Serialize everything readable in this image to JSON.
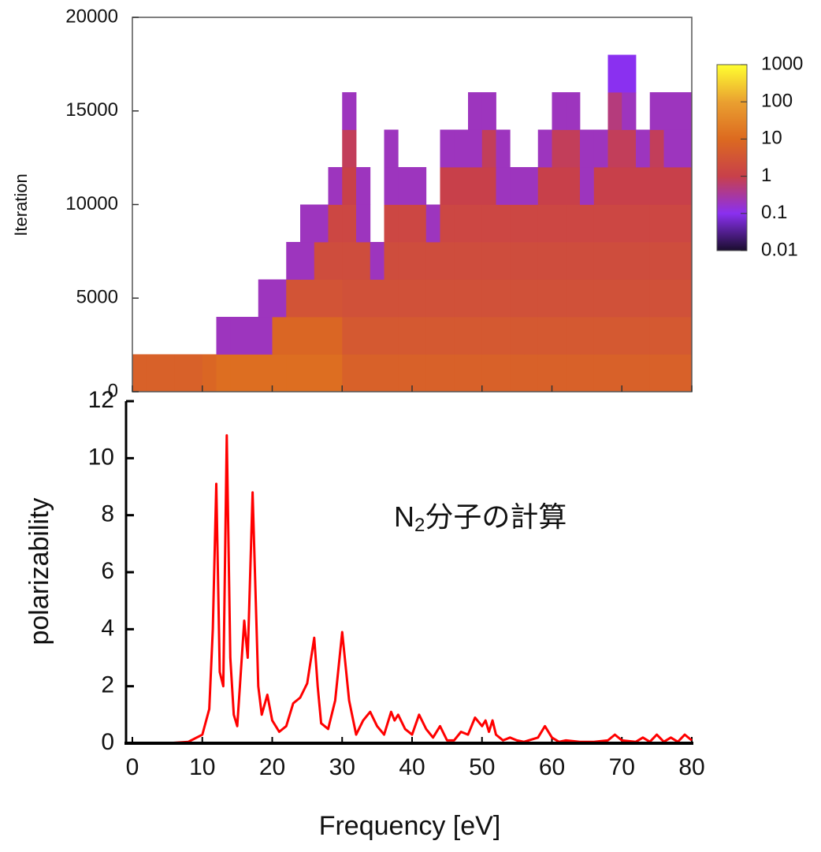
{
  "chart_data": [
    {
      "type": "heatmap",
      "ylabel": "Iteration",
      "xlim": [
        0,
        80
      ],
      "ylim": [
        0,
        20000
      ],
      "yticks": [
        0,
        5000,
        10000,
        15000,
        20000
      ],
      "x_bins": [
        0,
        2,
        4,
        6,
        8,
        10,
        12,
        14,
        16,
        18,
        20,
        22,
        24,
        26,
        28,
        30,
        32,
        34,
        36,
        38,
        40,
        42,
        44,
        46,
        48,
        50,
        52,
        54,
        56,
        58,
        60,
        62,
        64,
        66,
        68,
        70,
        72,
        74,
        76,
        78,
        80
      ],
      "y_bins": [
        0,
        2000,
        4000,
        6000,
        8000,
        10000,
        12000,
        14000,
        16000,
        18000,
        20000
      ],
      "log_color": true,
      "zlim": [
        0.01,
        1000
      ],
      "zticks": [
        1000,
        100,
        10,
        1,
        0.1,
        0.01
      ],
      "colormap": [
        "#1a0d2e",
        "#8a30f0",
        "#c8404a",
        "#dc6a20",
        "#eaa030",
        "#ffff30"
      ],
      "z": [
        [
          6,
          6,
          6,
          6,
          6,
          8,
          12,
          12,
          12,
          12,
          12,
          12,
          12,
          12,
          12,
          6,
          6,
          6,
          6,
          6,
          6,
          6,
          6,
          6,
          6,
          6,
          6,
          6,
          6,
          6,
          6,
          6,
          6,
          6,
          6,
          6,
          6,
          6,
          6,
          6
        ],
        [
          null,
          null,
          null,
          null,
          null,
          null,
          0.2,
          0.2,
          0.2,
          0.2,
          8,
          8,
          8,
          8,
          8,
          4,
          4,
          4,
          4,
          4,
          4,
          4,
          4,
          4,
          4,
          4,
          4,
          4,
          4,
          4,
          4,
          4,
          4,
          4,
          4,
          4,
          4,
          4,
          4,
          4
        ],
        [
          null,
          null,
          null,
          null,
          null,
          null,
          null,
          null,
          null,
          0.2,
          0.2,
          3,
          3,
          3,
          3,
          2.5,
          2.5,
          2.5,
          2.5,
          2.5,
          2.5,
          2.5,
          2.5,
          2.5,
          2.5,
          2.5,
          2.5,
          2.5,
          2.5,
          2.5,
          2.5,
          2.5,
          2.5,
          2.5,
          2.5,
          2.5,
          2.5,
          2.5,
          2.5,
          2.5
        ],
        [
          null,
          null,
          null,
          null,
          null,
          null,
          null,
          null,
          null,
          null,
          null,
          0.2,
          0.2,
          2,
          2,
          2,
          2,
          0.2,
          2,
          2,
          2,
          2,
          2,
          2,
          2,
          2,
          2,
          2,
          2,
          2,
          2,
          2,
          2,
          2,
          2,
          2,
          2,
          2,
          2,
          2
        ],
        [
          null,
          null,
          null,
          null,
          null,
          null,
          null,
          null,
          null,
          null,
          null,
          null,
          0.2,
          0.2,
          1.5,
          1.5,
          0.2,
          null,
          1.5,
          1.5,
          1.5,
          0.2,
          1.5,
          1.5,
          1.5,
          1.5,
          1.5,
          1.5,
          1.5,
          1.5,
          1.5,
          1.5,
          1.5,
          1.5,
          1.5,
          1.5,
          1.5,
          1.5,
          1.5,
          1.5
        ],
        [
          null,
          null,
          null,
          null,
          null,
          null,
          null,
          null,
          null,
          null,
          null,
          null,
          null,
          null,
          0.2,
          1,
          0.2,
          null,
          0.2,
          0.2,
          0.2,
          null,
          1,
          1,
          1,
          1,
          0.2,
          0.2,
          0.2,
          1,
          1,
          1,
          0.2,
          1,
          1,
          1,
          1,
          1,
          1,
          1
        ],
        [
          null,
          null,
          null,
          null,
          null,
          null,
          null,
          null,
          null,
          null,
          null,
          null,
          null,
          null,
          null,
          0.8,
          null,
          null,
          0.2,
          null,
          null,
          null,
          0.2,
          0.2,
          0.2,
          0.8,
          0.2,
          null,
          null,
          0.2,
          0.8,
          0.8,
          0.2,
          0.2,
          0.8,
          0.8,
          0.2,
          0.8,
          0.2,
          0.2
        ],
        [
          null,
          null,
          null,
          null,
          null,
          null,
          null,
          null,
          null,
          null,
          null,
          null,
          null,
          null,
          null,
          0.2,
          null,
          null,
          null,
          null,
          null,
          null,
          null,
          null,
          0.2,
          0.2,
          null,
          null,
          null,
          null,
          0.2,
          0.2,
          null,
          null,
          0.5,
          0.2,
          null,
          0.2,
          0.2,
          0.2
        ],
        [
          null,
          null,
          null,
          null,
          null,
          null,
          null,
          null,
          null,
          null,
          null,
          null,
          null,
          null,
          null,
          null,
          null,
          null,
          null,
          null,
          null,
          null,
          null,
          null,
          null,
          null,
          null,
          null,
          null,
          null,
          null,
          null,
          null,
          null,
          0.1,
          0.1,
          null,
          null,
          null,
          null
        ],
        [
          null,
          null,
          null,
          null,
          null,
          null,
          null,
          null,
          null,
          null,
          null,
          null,
          null,
          null,
          null,
          null,
          null,
          null,
          null,
          null,
          null,
          null,
          null,
          null,
          null,
          null,
          null,
          null,
          null,
          null,
          null,
          null,
          null,
          null,
          null,
          null,
          null,
          null,
          null,
          null
        ]
      ]
    },
    {
      "type": "line",
      "xlabel": "Frequency [eV]",
      "ylabel": "polarizability",
      "xlim": [
        0,
        80
      ],
      "ylim": [
        0,
        12
      ],
      "xticks": [
        0,
        10,
        20,
        30,
        40,
        50,
        60,
        70,
        80
      ],
      "yticks": [
        0,
        2,
        4,
        6,
        8,
        10,
        12
      ],
      "annotation": {
        "text": "N",
        "subscript": "2",
        "rest": "分子の計算"
      },
      "series": [
        {
          "color": "#ff0000",
          "x": [
            0,
            5,
            8,
            10,
            11,
            11.5,
            12,
            12.5,
            13,
            13.5,
            14,
            14.5,
            15,
            16,
            16.5,
            17.2,
            18,
            18.5,
            19.3,
            20,
            21,
            22,
            23,
            24,
            25,
            26,
            26.5,
            27,
            28,
            29,
            30,
            31,
            32,
            33,
            34,
            35,
            36,
            37,
            37.5,
            38,
            39,
            40,
            41,
            42,
            43,
            44,
            45,
            46,
            47,
            48,
            49,
            50,
            50.5,
            51,
            51.5,
            52,
            53,
            54,
            55,
            56,
            58,
            59,
            60,
            61,
            62,
            64,
            66,
            68,
            69,
            70,
            72,
            73,
            74,
            75,
            76,
            77,
            78,
            79,
            80
          ],
          "values": [
            0,
            0,
            0.05,
            0.3,
            1.2,
            4,
            9.1,
            2.5,
            2,
            10.8,
            3,
            1,
            0.6,
            4.3,
            3,
            8.8,
            2,
            1,
            1.7,
            0.8,
            0.4,
            0.6,
            1.4,
            1.6,
            2.1,
            3.7,
            2,
            0.7,
            0.5,
            1.5,
            3.9,
            1.5,
            0.3,
            0.8,
            1.1,
            0.6,
            0.3,
            1.1,
            0.8,
            1,
            0.5,
            0.3,
            1,
            0.5,
            0.2,
            0.6,
            0.1,
            0.1,
            0.4,
            0.3,
            0.9,
            0.6,
            0.8,
            0.4,
            0.8,
            0.3,
            0.1,
            0.2,
            0.1,
            0.05,
            0.2,
            0.6,
            0.2,
            0.05,
            0.1,
            0.05,
            0.05,
            0.1,
            0.3,
            0.1,
            0.05,
            0.2,
            0.05,
            0.3,
            0.05,
            0.2,
            0.05,
            0.3,
            0.1
          ]
        }
      ]
    }
  ]
}
